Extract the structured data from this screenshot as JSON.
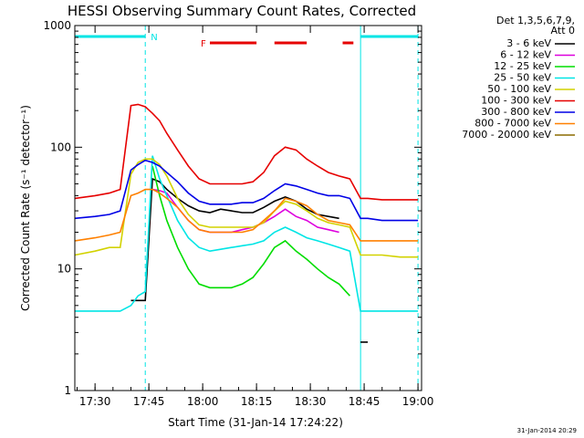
{
  "chart_data": {
    "type": "line",
    "title": "HESSI Observing Summary Count Rates, Corrected",
    "xlabel": "Start Time (31-Jan-14 17:24:22)",
    "ylabel": "Corrected Count Rate (s⁻¹ detector⁻¹)",
    "ylog": true,
    "ylim": [
      1,
      1000
    ],
    "xlim": [
      "17:24:22",
      "19:01"
    ],
    "x_ticks": [
      "17:30",
      "17:45",
      "18:00",
      "18:15",
      "18:30",
      "18:45",
      "19:00"
    ],
    "y_ticks": [
      "1",
      "10",
      "100",
      "1000"
    ],
    "legend_header": [
      "Det 1,3,5,6,7,9,",
      "Att 0"
    ],
    "legend_position": "right",
    "timestamp": "31-Jan-2014 20:29",
    "markers": {
      "night_label": "N",
      "flare_label": "F",
      "night_color": "#00e5e5",
      "flare_color": "#e60000",
      "night_intervals": [
        [
          "17:24:22",
          "17:44"
        ],
        [
          "18:44",
          "19:00"
        ]
      ],
      "flare_intervals": [
        [
          "18:02",
          "18:15"
        ],
        [
          "18:20",
          "18:29"
        ],
        [
          "18:39",
          "18:42"
        ]
      ],
      "vlines": [
        "17:44",
        "18:44",
        "19:00"
      ]
    },
    "times": [
      "17:24:22",
      "17:30",
      "17:34",
      "17:37",
      "17:40",
      "17:42",
      "17:44",
      "17:46",
      "17:48",
      "17:50",
      "17:53",
      "17:56",
      "17:59",
      "18:02",
      "18:05",
      "18:08",
      "18:11",
      "18:14",
      "18:17",
      "18:20",
      "18:23",
      "18:26",
      "18:29",
      "18:32",
      "18:35",
      "18:38",
      "18:41",
      "18:44",
      "18:46",
      "18:50",
      "18:55",
      "19:00"
    ],
    "series": [
      {
        "name": "3 - 6 keV",
        "color": "#000000",
        "values": [
          null,
          null,
          null,
          null,
          5.5,
          5.5,
          5.5,
          55,
          52,
          45,
          38,
          33,
          30,
          29,
          31,
          30,
          29,
          29,
          32,
          36,
          39,
          36,
          31,
          28,
          27,
          26,
          null,
          2.5,
          2.5,
          null,
          null,
          null
        ]
      },
      {
        "name": "6 - 12 keV",
        "color": "#dd00dd",
        "values": [
          null,
          null,
          null,
          null,
          null,
          null,
          null,
          45,
          44,
          42,
          32,
          25,
          21,
          20,
          20,
          20,
          21,
          22,
          24,
          27,
          31,
          27,
          25,
          22,
          21,
          20,
          null,
          null,
          null,
          null,
          null,
          null
        ]
      },
      {
        "name": "12 - 25 keV",
        "color": "#00dd00",
        "values": [
          null,
          null,
          null,
          null,
          null,
          null,
          null,
          70,
          40,
          25,
          15,
          10,
          7.5,
          7,
          7,
          7,
          7.5,
          8.5,
          11,
          15,
          17,
          14,
          12,
          10,
          8.5,
          7.5,
          6,
          null,
          null,
          null,
          null,
          null
        ]
      },
      {
        "name": "25 - 50 keV",
        "color": "#00e5e5",
        "values": [
          4.5,
          4.5,
          4.5,
          4.5,
          5,
          6,
          6.5,
          85,
          55,
          40,
          25,
          18,
          15,
          14,
          14.5,
          15,
          15.5,
          16,
          17,
          20,
          22,
          20,
          18,
          17,
          16,
          15,
          14,
          4.5,
          4.5,
          4.5,
          4.5,
          4.5
        ]
      },
      {
        "name": "50 - 100 keV",
        "color": "#d2d200",
        "values": [
          13,
          14,
          15,
          15,
          60,
          75,
          80,
          80,
          72,
          58,
          38,
          28,
          23,
          22,
          22,
          22,
          22,
          22,
          24,
          30,
          36,
          34,
          30,
          26,
          24,
          23,
          22,
          13,
          13,
          13,
          12.5,
          12.5
        ]
      },
      {
        "name": "100 - 300 keV",
        "color": "#e60000",
        "values": [
          38,
          40,
          42,
          45,
          220,
          225,
          215,
          190,
          165,
          130,
          95,
          70,
          55,
          50,
          50,
          50,
          50,
          52,
          62,
          85,
          100,
          95,
          80,
          70,
          62,
          58,
          55,
          38,
          38,
          37,
          37,
          37
        ]
      },
      {
        "name": "300 - 800 keV",
        "color": "#0000e6",
        "values": [
          26,
          27,
          28,
          30,
          65,
          72,
          78,
          75,
          70,
          62,
          52,
          42,
          36,
          34,
          34,
          34,
          35,
          35,
          38,
          44,
          50,
          48,
          45,
          42,
          40,
          40,
          38,
          26,
          26,
          25,
          25,
          25
        ]
      },
      {
        "name": "800 - 7000 keV",
        "color": "#ff8000",
        "values": [
          17,
          18,
          19,
          20,
          40,
          42,
          45,
          45,
          42,
          38,
          32,
          25,
          21,
          20,
          20,
          20,
          20,
          21,
          25,
          30,
          38,
          36,
          33,
          28,
          25,
          24,
          23,
          17,
          17,
          17,
          17,
          17
        ]
      },
      {
        "name": "7000 - 20000 keV",
        "color": "#8b6b00",
        "values": [
          null,
          null,
          null,
          null,
          null,
          null,
          null,
          null,
          null,
          null,
          null,
          null,
          null,
          null,
          null,
          null,
          null,
          null,
          null,
          null,
          null,
          null,
          null,
          null,
          null,
          null,
          null,
          null,
          null,
          null,
          null,
          null
        ]
      }
    ]
  }
}
